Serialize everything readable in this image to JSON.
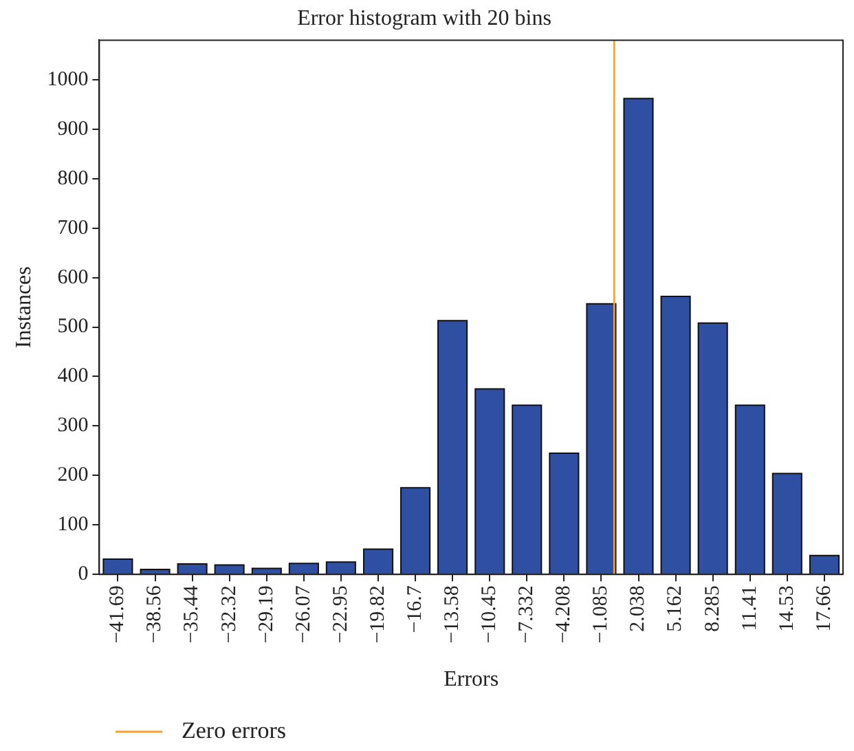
{
  "chart_data": {
    "type": "bar",
    "title": "Error histogram with 20 bins",
    "xlabel": "Errors",
    "ylabel": "Instances",
    "x": [
      -41.69,
      -38.56,
      -35.44,
      -32.32,
      -29.19,
      -26.07,
      -22.95,
      -19.82,
      -16.7,
      -13.58,
      -10.45,
      -7.332,
      -4.208,
      -1.085,
      2.038,
      5.162,
      8.285,
      11.41,
      14.53,
      17.66
    ],
    "values": [
      31,
      10,
      21,
      19,
      12,
      22,
      25,
      51,
      175,
      513,
      375,
      342,
      245,
      547,
      962,
      562,
      508,
      342,
      204,
      38
    ],
    "color": "#2f4fa2",
    "xlim": [
      -43.25,
      19.22
    ],
    "xticks": [
      {
        "value": -41.69,
        "label": "−41.69"
      },
      {
        "value": -38.56,
        "label": "−38.56"
      },
      {
        "value": -35.44,
        "label": "−35.44"
      },
      {
        "value": -32.32,
        "label": "−32.32"
      },
      {
        "value": -29.19,
        "label": "−29.19"
      },
      {
        "value": -26.07,
        "label": "−26.07"
      },
      {
        "value": -22.95,
        "label": "−22.95"
      },
      {
        "value": -19.82,
        "label": "−19.82"
      },
      {
        "value": -16.7,
        "label": "−16.7"
      },
      {
        "value": -13.58,
        "label": "−13.58"
      },
      {
        "value": -10.45,
        "label": "−10.45"
      },
      {
        "value": -7.332,
        "label": "−7.332"
      },
      {
        "value": -4.208,
        "label": "−4.208"
      },
      {
        "value": -1.085,
        "label": "−1.085"
      },
      2.038,
      5.162,
      8.285,
      11.41,
      14.53,
      17.66
    ],
    "ylim": [
      0,
      1080
    ],
    "yticks": [
      0,
      100,
      200,
      300,
      400,
      500,
      600,
      700,
      800,
      900,
      1000
    ],
    "ref_lines": [
      {
        "axis": "x",
        "value": 0,
        "label": "Zero errors",
        "color": "#f7a030"
      }
    ],
    "grid": false,
    "legend": "bottom left"
  }
}
